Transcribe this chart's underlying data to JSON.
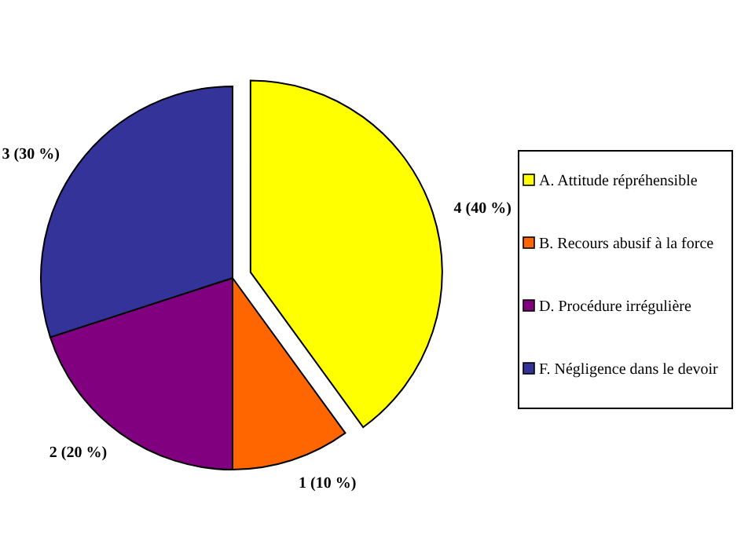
{
  "chart_data": {
    "type": "pie",
    "categories": [
      "A. Attitude répréhensible",
      "B. Recours abusif à la force",
      "D. Procédure irrégulière",
      "F. Négligence dans le devoir"
    ],
    "values": [
      4,
      1,
      2,
      3
    ],
    "colors": [
      "#ffff00",
      "#ff6600",
      "#800080",
      "#333399"
    ],
    "value_labels": [
      "4 (40 %)",
      "1 (10 %)",
      "2 (20 %)",
      "3 (30 %)"
    ],
    "legend": "right"
  }
}
